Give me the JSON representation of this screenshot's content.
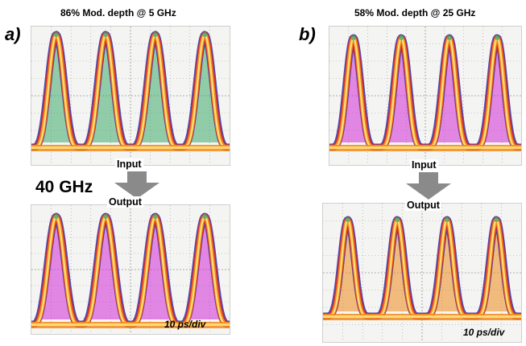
{
  "panel_a": {
    "title": "86% Mod. depth @ 5 GHz",
    "label": "a)",
    "input_label": "Input",
    "output_label": "Output",
    "rate_label": "40 GHz",
    "scale_label": "10 ps/div"
  },
  "panel_b": {
    "title": "58% Mod. depth @ 25 GHz",
    "label": "b)",
    "input_label": "Input",
    "output_label": "Output",
    "scale_label": "10 ps/div"
  },
  "colors": {
    "scope_bg": "#f4f5f3",
    "grid": "#9a9a9a",
    "edge_blue": "#3a3ab0",
    "red": "#d8262a",
    "orange": "#f08a1e",
    "yellow": "#ffe07a",
    "green": "#3faa6a",
    "magenta": "#d12bd6",
    "arrow": "#8a8a8a"
  },
  "chart_data": [
    {
      "id": "a-input",
      "type": "eye-diagram",
      "peaks": 4,
      "modulation_depth_pct": 86,
      "frequency_GHz": 5,
      "fill": "green"
    },
    {
      "id": "a-output",
      "type": "eye-diagram",
      "peaks": 4,
      "fill": "magenta"
    },
    {
      "id": "b-input",
      "type": "eye-diagram",
      "peaks": 4,
      "modulation_depth_pct": 58,
      "frequency_GHz": 25,
      "fill": "magenta"
    },
    {
      "id": "b-output",
      "type": "eye-diagram",
      "peaks": 4,
      "fill": "orange"
    }
  ]
}
